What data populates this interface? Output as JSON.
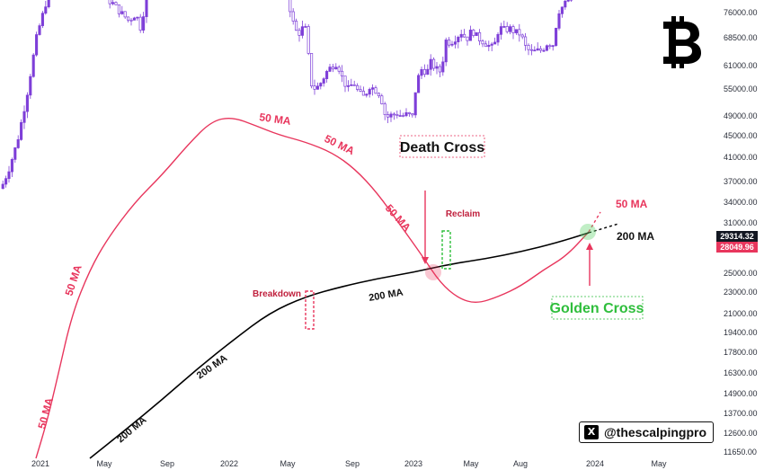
{
  "chart_data": {
    "type": "candlestick",
    "asset": "BTC",
    "price_scale": "log",
    "ylim": [
      11650,
      76000
    ],
    "y_ticks": [
      "76000.00",
      "68500.00",
      "61000.00",
      "55000.00",
      "49000.00",
      "45000.00",
      "41000.00",
      "37000.00",
      "34000.00",
      "31000.00",
      "28000.00",
      "25000.00",
      "23000.00",
      "21000.00",
      "19400.00",
      "17800.00",
      "16300.00",
      "14900.00",
      "13700.00",
      "12600.00",
      "11650.00"
    ],
    "x_ticks": [
      "2021",
      "May",
      "Sep",
      "2022",
      "May",
      "Sep",
      "2023",
      "May",
      "Aug",
      "2024",
      "May"
    ],
    "price_badges": [
      {
        "value": "29314.32",
        "color": "#131722"
      },
      {
        "value": "28049.96",
        "color": "#e8365d"
      }
    ],
    "series": [
      {
        "name": "50 MA",
        "color": "#e8365d"
      },
      {
        "name": "200 MA",
        "color": "#000000"
      }
    ],
    "annotations": {
      "death_cross": "Death Cross",
      "golden_cross": "Golden Cross",
      "reclaim": "Reclaim",
      "breakdown": "Breakdown",
      "ma50_labels": [
        "50 MA",
        "50 MA",
        "50 MA",
        "50 MA",
        "50 MA",
        "50 MA"
      ],
      "ma200_labels": [
        "200 MA",
        "200 MA",
        "200 MA",
        "200 MA"
      ]
    },
    "candle_color": "#7e3fd8",
    "ma50_color": "#e8365d",
    "ma200_color": "#000000"
  },
  "watermark": {
    "x_glyph": "X",
    "handle": "@thescalpingpro"
  },
  "logo_icon": "bitcoin-icon"
}
